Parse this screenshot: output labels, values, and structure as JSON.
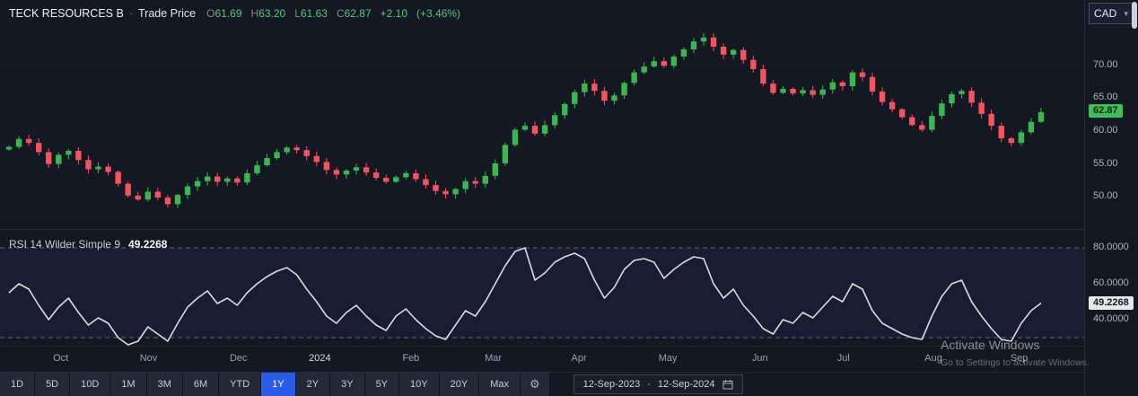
{
  "header": {
    "symbol": "TECK RESOURCES B",
    "separator": "·",
    "series": "Trade Price",
    "o_label": "O",
    "o": "61.69",
    "h_label": "H",
    "h": "63.20",
    "l_label": "L",
    "l": "61.63",
    "c_label": "C",
    "c": "62.87",
    "change": "+2.10",
    "change_pct": "(+3.46%)",
    "currency": "CAD"
  },
  "rsi_header": {
    "label": "RSI 14 Wilder Simple 9",
    "value": "49.2268"
  },
  "time_axis": {
    "labels": [
      "Oct",
      "Nov",
      "Dec",
      "2024",
      "Feb",
      "Mar",
      "Apr",
      "May",
      "Jun",
      "Jul",
      "Aug",
      "Sep"
    ],
    "positions": [
      0.056,
      0.137,
      0.22,
      0.295,
      0.379,
      0.455,
      0.534,
      0.616,
      0.701,
      0.778,
      0.861,
      0.94
    ],
    "emphasized": "2024"
  },
  "toolbar": {
    "ranges": [
      "1D",
      "5D",
      "10D",
      "1M",
      "3M",
      "6M",
      "YTD",
      "1Y",
      "2Y",
      "3Y",
      "5Y",
      "10Y",
      "20Y",
      "Max"
    ],
    "selected": "1Y",
    "date_from": "12-Sep-2023",
    "date_dash": "-",
    "date_to": "12-Sep-2024"
  },
  "watermark": {
    "line1": "Activate Windows",
    "line2": "Go to Settings to activate Windows."
  },
  "colors": {
    "up": "#3bb650",
    "down": "#f7525f",
    "rsi_line": "#d9dadf",
    "grid": "rgba(255,255,255,0.07)",
    "band_fill": "rgba(120,98,255,0.07)",
    "band_line": "rgba(170,174,192,0.5)",
    "selected_range": "#2a5cea",
    "last_price_badge": "#3fbf58"
  },
  "chart_data": [
    {
      "type": "candlestick",
      "title": "TECK RESOURCES B Trade Price",
      "currency": "CAD",
      "ohlc_last": {
        "open": 61.69,
        "high": 63.2,
        "low": 61.63,
        "close": 62.87,
        "change": 2.1,
        "change_pct": 3.46
      },
      "ylim": [
        45,
        75.8
      ],
      "y_ticks": [
        50,
        55,
        60,
        65,
        70
      ],
      "y_tick_labels": [
        "50.00",
        "55.00",
        "60.00",
        "65.00",
        "70.00"
      ],
      "x_months": [
        "Oct",
        "Nov",
        "Dec",
        "2024",
        "Feb",
        "Mar",
        "Apr",
        "May",
        "Jun",
        "Jul",
        "Aug",
        "Sep"
      ],
      "closes": [
        57.6,
        58.8,
        58.2,
        56.8,
        55.0,
        56.4,
        57.0,
        55.6,
        54.2,
        54.6,
        53.8,
        52.0,
        50.2,
        49.6,
        50.8,
        49.9,
        48.9,
        50.3,
        51.6,
        52.4,
        53.1,
        52.3,
        52.8,
        52.2,
        53.6,
        54.8,
        55.9,
        56.8,
        57.5,
        57.1,
        56.2,
        55.3,
        54.1,
        53.4,
        54.0,
        54.5,
        53.7,
        52.9,
        52.3,
        53.0,
        53.6,
        52.7,
        51.8,
        50.9,
        50.4,
        51.2,
        52.4,
        52.0,
        53.2,
        55.1,
        57.9,
        60.2,
        60.8,
        59.6,
        60.9,
        62.4,
        64.1,
        65.9,
        67.2,
        66.1,
        64.6,
        65.4,
        67.3,
        68.9,
        69.8,
        70.6,
        69.9,
        71.3,
        72.4,
        73.6,
        74.2,
        72.8,
        71.6,
        72.3,
        70.8,
        69.4,
        67.2,
        65.8,
        66.4,
        65.7,
        66.2,
        65.5,
        66.3,
        67.4,
        66.8,
        68.9,
        68.2,
        66.0,
        64.4,
        63.3,
        62.1,
        60.9,
        60.2,
        62.3,
        64.2,
        65.6,
        66.1,
        64.3,
        62.6,
        60.8,
        58.9,
        58.2,
        59.8,
        61.4,
        62.87
      ],
      "last_price": 62.87,
      "last_price_label": "62.87"
    },
    {
      "type": "line",
      "title": "RSI 14 Wilder Simple 9",
      "ylim": [
        25,
        90
      ],
      "y_ticks": [
        40,
        60,
        80
      ],
      "y_tick_labels": [
        "40.0000",
        "60.0000",
        "80.0000"
      ],
      "bands": [
        30,
        80
      ],
      "values": [
        55,
        60,
        57,
        48,
        40,
        47,
        52,
        44,
        37,
        41,
        38,
        30,
        26,
        28,
        36,
        32,
        28,
        38,
        47,
        52,
        56,
        49,
        52,
        48,
        55,
        60,
        64,
        67,
        69,
        65,
        57,
        50,
        42,
        38,
        44,
        48,
        42,
        37,
        34,
        42,
        46,
        40,
        35,
        31,
        29,
        37,
        45,
        42,
        50,
        60,
        70,
        78,
        80,
        62,
        66,
        72,
        75,
        77,
        74,
        62,
        52,
        58,
        68,
        73,
        74,
        72,
        63,
        68,
        72,
        75,
        74,
        60,
        52,
        57,
        48,
        42,
        35,
        32,
        40,
        38,
        44,
        41,
        47,
        53,
        50,
        60,
        57,
        45,
        38,
        35,
        32,
        30,
        29,
        42,
        53,
        60,
        62,
        50,
        42,
        35,
        29,
        28,
        38,
        45,
        49.2268
      ],
      "last": 49.2268,
      "last_label": "49.2268"
    }
  ]
}
